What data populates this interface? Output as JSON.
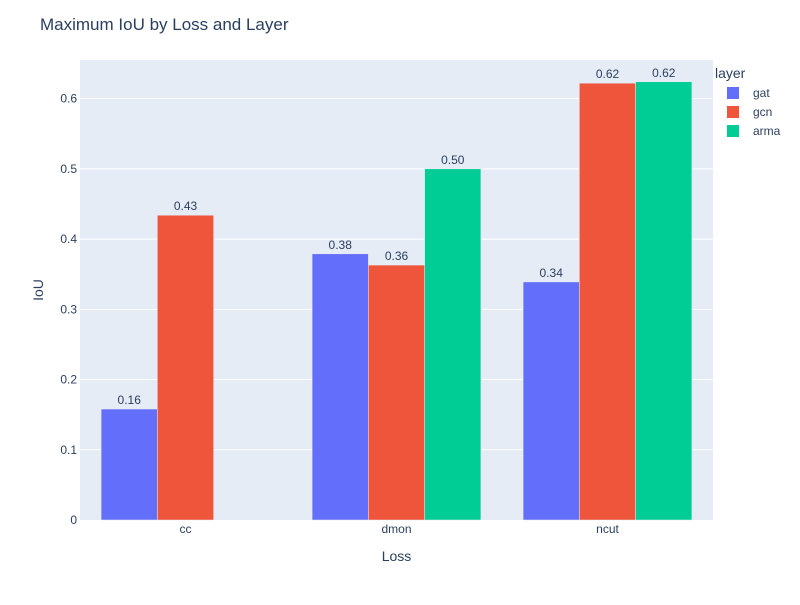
{
  "chart_data": {
    "type": "bar",
    "title": "Maximum IoU by Loss and Layer",
    "xlabel": "Loss",
    "ylabel": "IoU",
    "categories": [
      "cc",
      "dmon",
      "ncut"
    ],
    "series": [
      {
        "name": "gat",
        "color": "#636efa",
        "values": [
          0.158,
          0.379,
          0.339
        ],
        "labels": [
          "0.16",
          "0.38",
          "0.34"
        ]
      },
      {
        "name": "gcn",
        "color": "#ef553b",
        "values": [
          0.434,
          0.363,
          0.622
        ],
        "labels": [
          "0.43",
          "0.36",
          "0.62"
        ]
      },
      {
        "name": "arma",
        "color": "#00cc96",
        "values": [
          null,
          0.5,
          0.624
        ],
        "labels": [
          null,
          "0.50",
          "0.62"
        ]
      }
    ],
    "ylim": [
      0,
      0.655
    ],
    "yticks": [
      0,
      0.1,
      0.2,
      0.3,
      0.4,
      0.5,
      0.6
    ],
    "ytick_labels": [
      "0",
      "0.1",
      "0.2",
      "0.3",
      "0.4",
      "0.5",
      "0.6"
    ],
    "grid": true,
    "legend": {
      "title": "layer",
      "placement": "top-right, outside plot"
    },
    "colors": {
      "plot_background": "#e5ecf6",
      "grid": "#ffffff",
      "text": "#2a3f5f"
    }
  }
}
